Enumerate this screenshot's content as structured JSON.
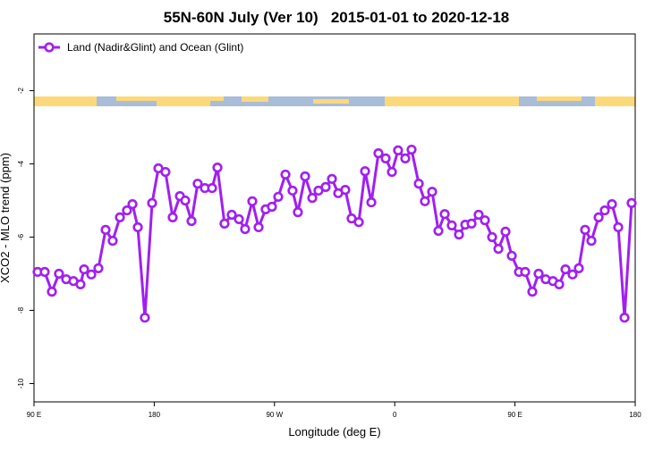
{
  "chart_data": {
    "type": "line",
    "title": "55N-60N July (Ver 10)   2015-01-01 to 2020-12-18",
    "xlabel": "Longitude (deg E)",
    "ylabel": "XCO2 - MLO trend (ppm)",
    "xlim": [
      90,
      540
    ],
    "xticks": [
      {
        "value": 90,
        "label": "90 E"
      },
      {
        "value": 180,
        "label": "180"
      },
      {
        "value": 270,
        "label": "90 W"
      },
      {
        "value": 360,
        "label": "0"
      },
      {
        "value": 450,
        "label": "90 E"
      },
      {
        "value": 540,
        "label": "180"
      }
    ],
    "ylim": [
      -10.5,
      -0.45
    ],
    "yticks": [
      -2,
      -4,
      -6,
      -8,
      -10
    ],
    "legend": "top-left",
    "series": [
      {
        "name": "Land (Nadir&Glint) and Ocean (Glint)",
        "color": "#a020f0",
        "x": [
          92.7,
          98.0,
          103.4,
          108.7,
          114.1,
          119.5,
          124.8,
          127.5,
          132.9,
          138.2,
          143.6,
          148.9,
          154.3,
          159.6,
          163.7,
          167.7,
          173.0,
          178.4,
          183.1,
          188.4,
          193.8,
          199.2,
          203.2,
          207.9,
          212.5,
          217.9,
          223.3,
          227.3,
          232.6,
          238.0,
          243.4,
          248.0,
          253.4,
          258.1,
          263.4,
          268.1,
          272.8,
          278.2,
          283.5,
          287.5,
          292.9,
          298.3,
          302.9,
          308.3,
          313.0,
          317.7,
          323.0,
          327.7,
          333.1,
          337.8,
          342.5,
          347.8,
          353.2,
          357.9,
          362.5,
          367.9,
          372.6,
          378.0,
          382.6,
          388.0,
          392.7,
          397.4,
          402.7,
          408.1,
          412.8,
          417.5,
          422.8,
          427.5,
          432.9,
          437.6,
          442.9,
          447.6,
          453.0,
          457.6,
          463.0,
          467.7,
          473.0,
          478.4,
          483.1,
          487.8,
          493.1,
          497.8,
          502.5,
          507.2,
          512.6,
          517.2,
          522.6,
          527.3,
          532.0,
          537.3
        ],
        "values": [
          -6.95,
          -6.95,
          -7.49,
          -7.0,
          -7.15,
          -7.2,
          -7.29,
          -6.88,
          -7.02,
          -6.85,
          -5.8,
          -6.1,
          -5.46,
          -5.27,
          -5.1,
          -5.73,
          -8.2,
          -5.07,
          -4.12,
          -4.22,
          -5.46,
          -4.88,
          -5.0,
          -5.56,
          -4.54,
          -4.66,
          -4.66,
          -4.1,
          -5.63,
          -5.39,
          -5.51,
          -5.78,
          -5.02,
          -5.73,
          -5.24,
          -5.17,
          -4.9,
          -4.29,
          -4.73,
          -5.32,
          -4.34,
          -4.93,
          -4.73,
          -4.63,
          -4.41,
          -4.8,
          -4.71,
          -5.49,
          -5.59,
          -4.2,
          -5.05,
          -3.71,
          -3.85,
          -4.22,
          -3.63,
          -3.85,
          -3.61,
          -4.54,
          -5.02,
          -4.76,
          -5.83,
          -5.37,
          -5.68,
          -5.93,
          -5.66,
          -5.63,
          -5.39,
          -5.54,
          -6.0,
          -6.32,
          -5.85,
          -6.51,
          -6.95,
          -6.95,
          -7.49,
          -7.0,
          -7.15,
          -7.2,
          -7.29,
          -6.88,
          -7.02,
          -6.85,
          -5.8,
          -6.1,
          -5.46,
          -5.27,
          -5.1,
          -5.73,
          -8.2,
          -5.07
        ]
      }
    ]
  }
}
